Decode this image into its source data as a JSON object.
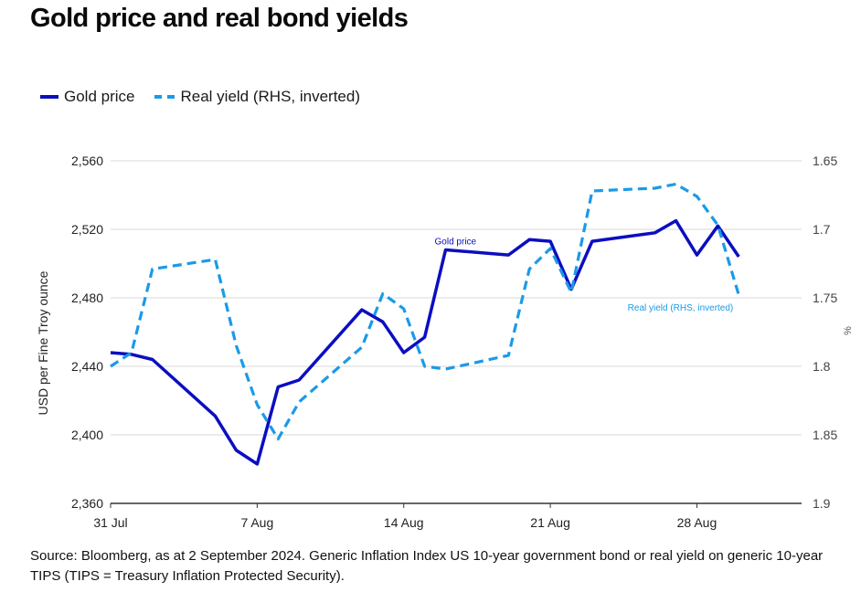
{
  "title": "Gold price and real bond yields",
  "legend": {
    "gold": "Gold price",
    "yield": "Real yield (RHS, inverted)"
  },
  "source": "Source: Bloomberg, as at 2 September 2024. Generic Inflation Index US 10-year government bond or real yield on generic 10-year TIPS (TIPS = Treasury Inflation Protected Security).",
  "colors": {
    "gold": "#0b0ec0",
    "yield": "#1a9ae8",
    "grid": "#d9d9d9",
    "axis": "#333333"
  },
  "chart_data": {
    "type": "line",
    "ylabel": "USD per Fine Troy ounce",
    "y2label": "%",
    "ylim": [
      2360,
      2560
    ],
    "y2lim": [
      1.9,
      1.65
    ],
    "y2_inverted": true,
    "yticks": [
      "2,360",
      "2,400",
      "2,440",
      "2,480",
      "2,520",
      "2,560"
    ],
    "y2ticks": [
      "1.9",
      "1.85",
      "1.8",
      "1.75",
      "1.7",
      "1.65"
    ],
    "xlim": [
      "2024-07-31",
      "2024-09-02"
    ],
    "xticks": [
      {
        "date": "2024-07-31",
        "label": "31 Jul"
      },
      {
        "date": "2024-08-07",
        "label": "7 Aug"
      },
      {
        "date": "2024-08-14",
        "label": "14 Aug"
      },
      {
        "date": "2024-08-21",
        "label": "21 Aug"
      },
      {
        "date": "2024-08-28",
        "label": "28 Aug"
      }
    ],
    "grid": true,
    "legend_position": "top-left",
    "annotations": [
      {
        "text": "Gold price",
        "series": "gold"
      },
      {
        "text": "Real yield (RHS, inverted)",
        "series": "yield"
      }
    ],
    "series": [
      {
        "key": "gold",
        "name": "Gold price",
        "axis": "left",
        "style": "solid",
        "points": [
          {
            "date": "2024-07-31",
            "value": 2448
          },
          {
            "date": "2024-08-01",
            "value": 2447
          },
          {
            "date": "2024-08-02",
            "value": 2444
          },
          {
            "date": "2024-08-05",
            "value": 2411
          },
          {
            "date": "2024-08-06",
            "value": 2391
          },
          {
            "date": "2024-08-07",
            "value": 2383
          },
          {
            "date": "2024-08-08",
            "value": 2428
          },
          {
            "date": "2024-08-09",
            "value": 2432
          },
          {
            "date": "2024-08-12",
            "value": 2473
          },
          {
            "date": "2024-08-13",
            "value": 2466
          },
          {
            "date": "2024-08-14",
            "value": 2448
          },
          {
            "date": "2024-08-15",
            "value": 2457
          },
          {
            "date": "2024-08-16",
            "value": 2508
          },
          {
            "date": "2024-08-19",
            "value": 2505
          },
          {
            "date": "2024-08-20",
            "value": 2514
          },
          {
            "date": "2024-08-21",
            "value": 2513
          },
          {
            "date": "2024-08-22",
            "value": 2485
          },
          {
            "date": "2024-08-23",
            "value": 2513
          },
          {
            "date": "2024-08-26",
            "value": 2518
          },
          {
            "date": "2024-08-27",
            "value": 2525
          },
          {
            "date": "2024-08-28",
            "value": 2505
          },
          {
            "date": "2024-08-29",
            "value": 2522
          },
          {
            "date": "2024-08-30",
            "value": 2504
          }
        ]
      },
      {
        "key": "yield",
        "name": "Real yield (RHS, inverted)",
        "axis": "right",
        "style": "dashed",
        "points": [
          {
            "date": "2024-07-31",
            "value": 1.8
          },
          {
            "date": "2024-08-01",
            "value": 1.79
          },
          {
            "date": "2024-08-02",
            "value": 1.729
          },
          {
            "date": "2024-08-05",
            "value": 1.722
          },
          {
            "date": "2024-08-06",
            "value": 1.785
          },
          {
            "date": "2024-08-07",
            "value": 1.828
          },
          {
            "date": "2024-08-08",
            "value": 1.853
          },
          {
            "date": "2024-08-09",
            "value": 1.826
          },
          {
            "date": "2024-08-12",
            "value": 1.786
          },
          {
            "date": "2024-08-13",
            "value": 1.747
          },
          {
            "date": "2024-08-14",
            "value": 1.758
          },
          {
            "date": "2024-08-15",
            "value": 1.8
          },
          {
            "date": "2024-08-16",
            "value": 1.802
          },
          {
            "date": "2024-08-19",
            "value": 1.792
          },
          {
            "date": "2024-08-20",
            "value": 1.729
          },
          {
            "date": "2024-08-21",
            "value": 1.714
          },
          {
            "date": "2024-08-22",
            "value": 1.746
          },
          {
            "date": "2024-08-23",
            "value": 1.672
          },
          {
            "date": "2024-08-26",
            "value": 1.67
          },
          {
            "date": "2024-08-27",
            "value": 1.667
          },
          {
            "date": "2024-08-28",
            "value": 1.676
          },
          {
            "date": "2024-08-29",
            "value": 1.697
          },
          {
            "date": "2024-08-30",
            "value": 1.748
          }
        ]
      }
    ]
  }
}
